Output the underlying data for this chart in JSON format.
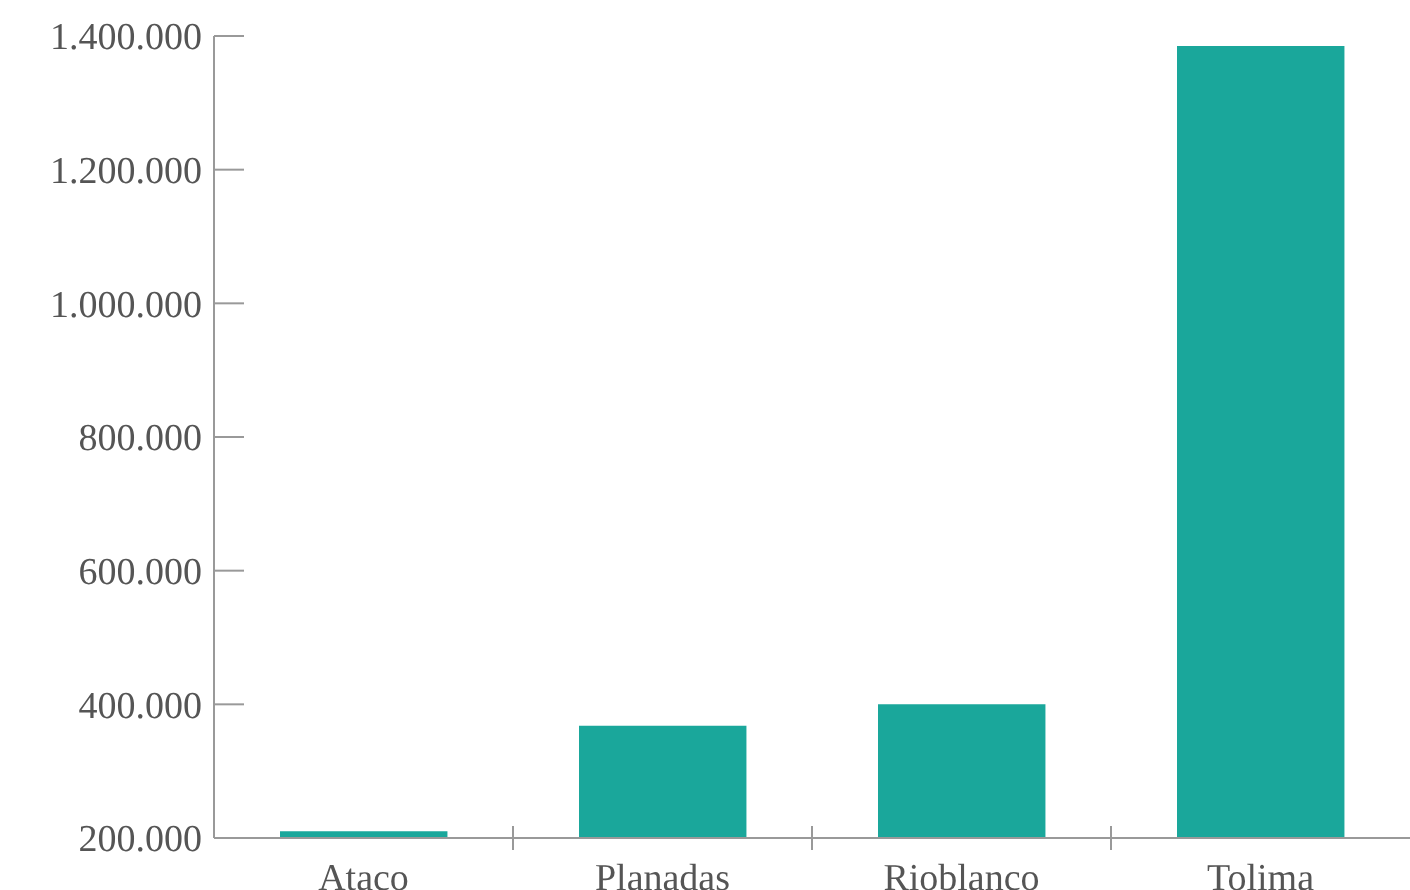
{
  "chart_data": {
    "type": "bar",
    "categories": [
      "Ataco",
      "Planadas",
      "Rioblanco",
      "Tolima"
    ],
    "values": [
      210000,
      368000,
      400000,
      1385000
    ],
    "color": "#1aa79b",
    "ylim": [
      200000,
      1400000
    ],
    "yticks": [
      {
        "value": 200000,
        "label": "200.000"
      },
      {
        "value": 400000,
        "label": "400.000"
      },
      {
        "value": 600000,
        "label": "600.000"
      },
      {
        "value": 800000,
        "label": "800.000"
      },
      {
        "value": 1000000,
        "label": "1.000.000"
      },
      {
        "value": 1200000,
        "label": "1.200.000"
      },
      {
        "value": 1400000,
        "label": "1.400.000"
      }
    ],
    "grid": false,
    "legend": false
  }
}
